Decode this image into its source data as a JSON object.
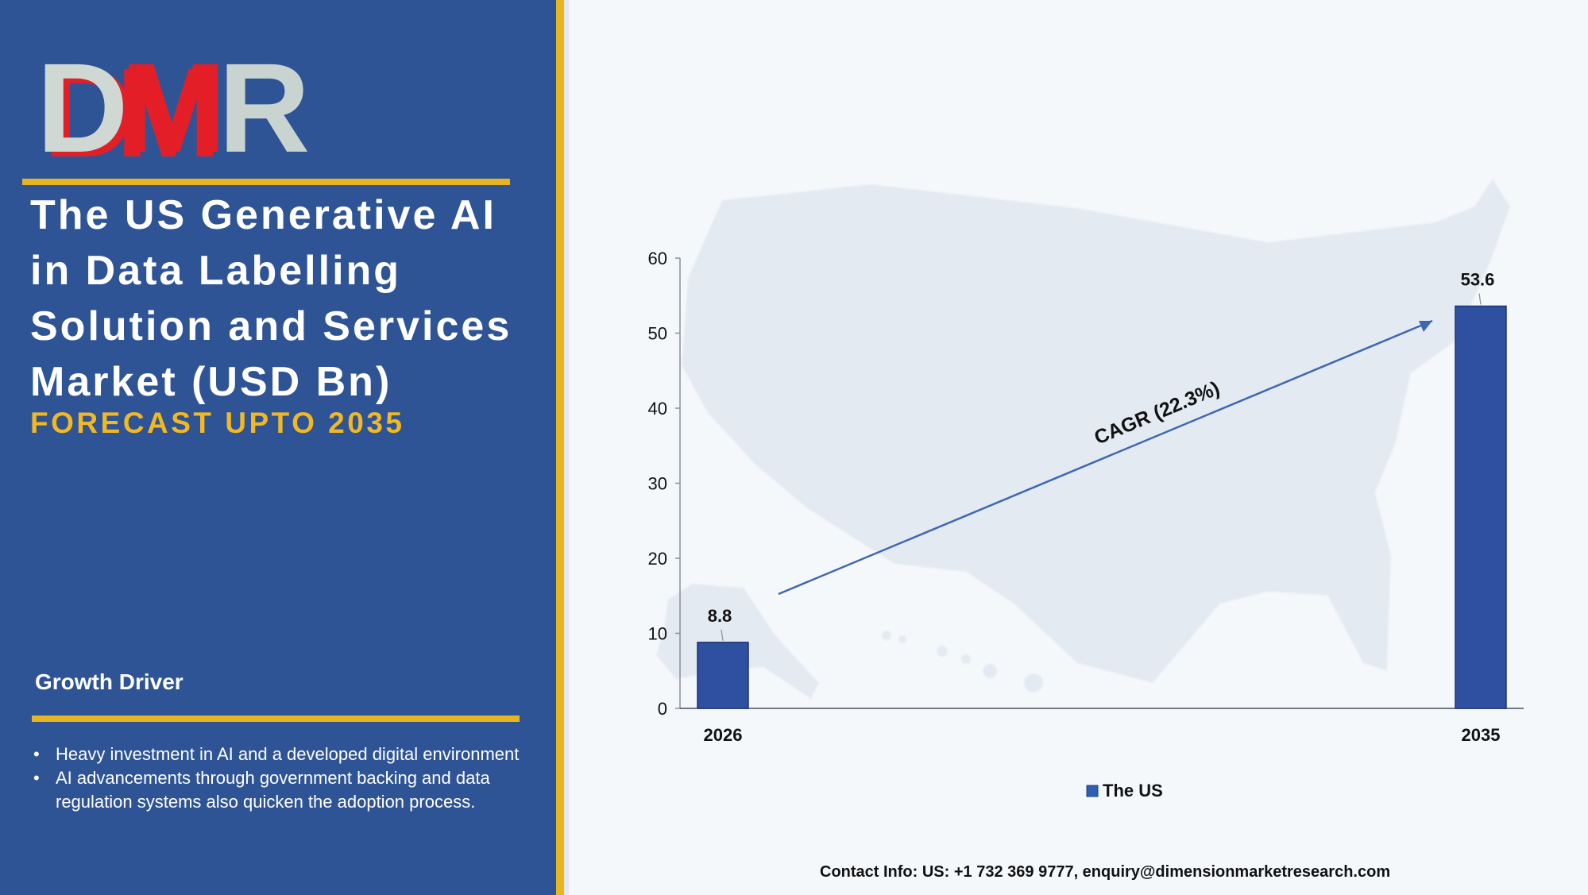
{
  "brand": {
    "logo": "DMR",
    "colors": {
      "panel": "#2e5496",
      "accent": "#e8b520",
      "logo_red": "#e31e26",
      "bar": "#2f4fa0"
    }
  },
  "title": "The US Generative AI in Data Labelling Solution and Services Market (USD Bn)",
  "subtitle": "FORECAST UPTO 2035",
  "growth_driver": {
    "heading": "Growth Driver",
    "items": [
      "Heavy investment in AI and a developed digital environment",
      "AI advancements through government backing and data regulation systems also quicken the adoption process."
    ]
  },
  "chart_data": {
    "type": "bar",
    "categories": [
      "2026",
      "2035"
    ],
    "series": [
      {
        "name": "The US",
        "values": [
          8.8,
          53.6
        ]
      }
    ],
    "data_labels": [
      "8.8",
      "53.6"
    ],
    "ylim": [
      0,
      60
    ],
    "yticks": [
      0,
      10,
      20,
      30,
      40,
      50,
      60
    ],
    "annotation": "CAGR (22.3%)",
    "legend": "bottom",
    "grid": false,
    "background": "us-map-silhouette"
  },
  "contact": "Contact Info: US: +1 732 369 9777, enquiry@dimensionmarketresearch.com"
}
